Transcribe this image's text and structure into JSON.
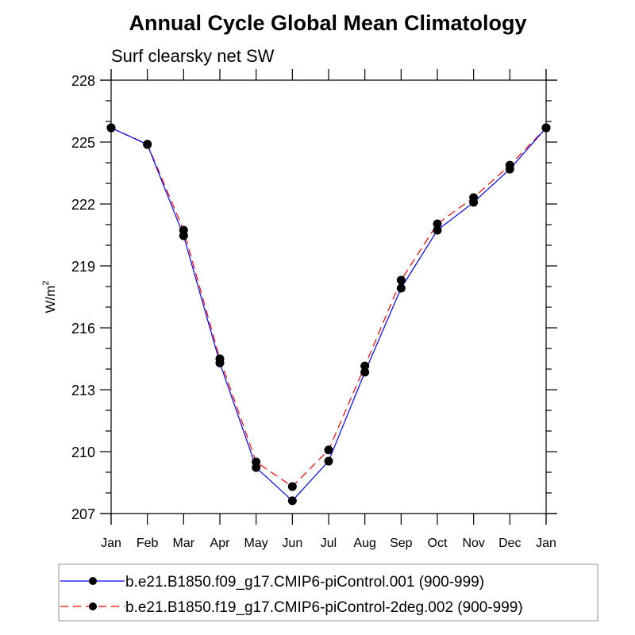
{
  "chart_data": {
    "type": "line",
    "title": "Annual Cycle Global Mean Climatology",
    "subtitle": "Surf clearsky net SW",
    "xlabel": "",
    "ylabel": "W/m",
    "ylabel_superscript": "2",
    "categories": [
      "Jan",
      "Feb",
      "Mar",
      "Apr",
      "May",
      "Jun",
      "Jul",
      "Aug",
      "Sep",
      "Oct",
      "Nov",
      "Dec",
      "Jan"
    ],
    "yticks": [
      207,
      210,
      213,
      216,
      219,
      222,
      225,
      228
    ],
    "ylim": [
      207,
      228
    ],
    "y_minor_step": 1,
    "grid": false,
    "legend_position": "bottom",
    "series": [
      {
        "name": "b.e21.B1850.f09_g17.CMIP6-piControl.001 (900-999)",
        "color": "#0000ff",
        "line_style": "solid",
        "marker": "filled-circle",
        "values": [
          225.69,
          224.88,
          220.46,
          214.3,
          209.23,
          207.62,
          209.54,
          213.85,
          217.92,
          220.73,
          222.08,
          223.69,
          225.69
        ]
      },
      {
        "name": "b.e21.B1850.f19_g17.CMIP6-piControl-2deg.002 (900-999)",
        "color": "#ff0000",
        "line_style": "dashed",
        "marker": "filled-circle",
        "values": [
          225.69,
          224.9,
          220.73,
          214.5,
          209.5,
          208.31,
          210.08,
          214.15,
          218.31,
          221.04,
          222.31,
          223.88,
          225.69
        ]
      }
    ]
  }
}
